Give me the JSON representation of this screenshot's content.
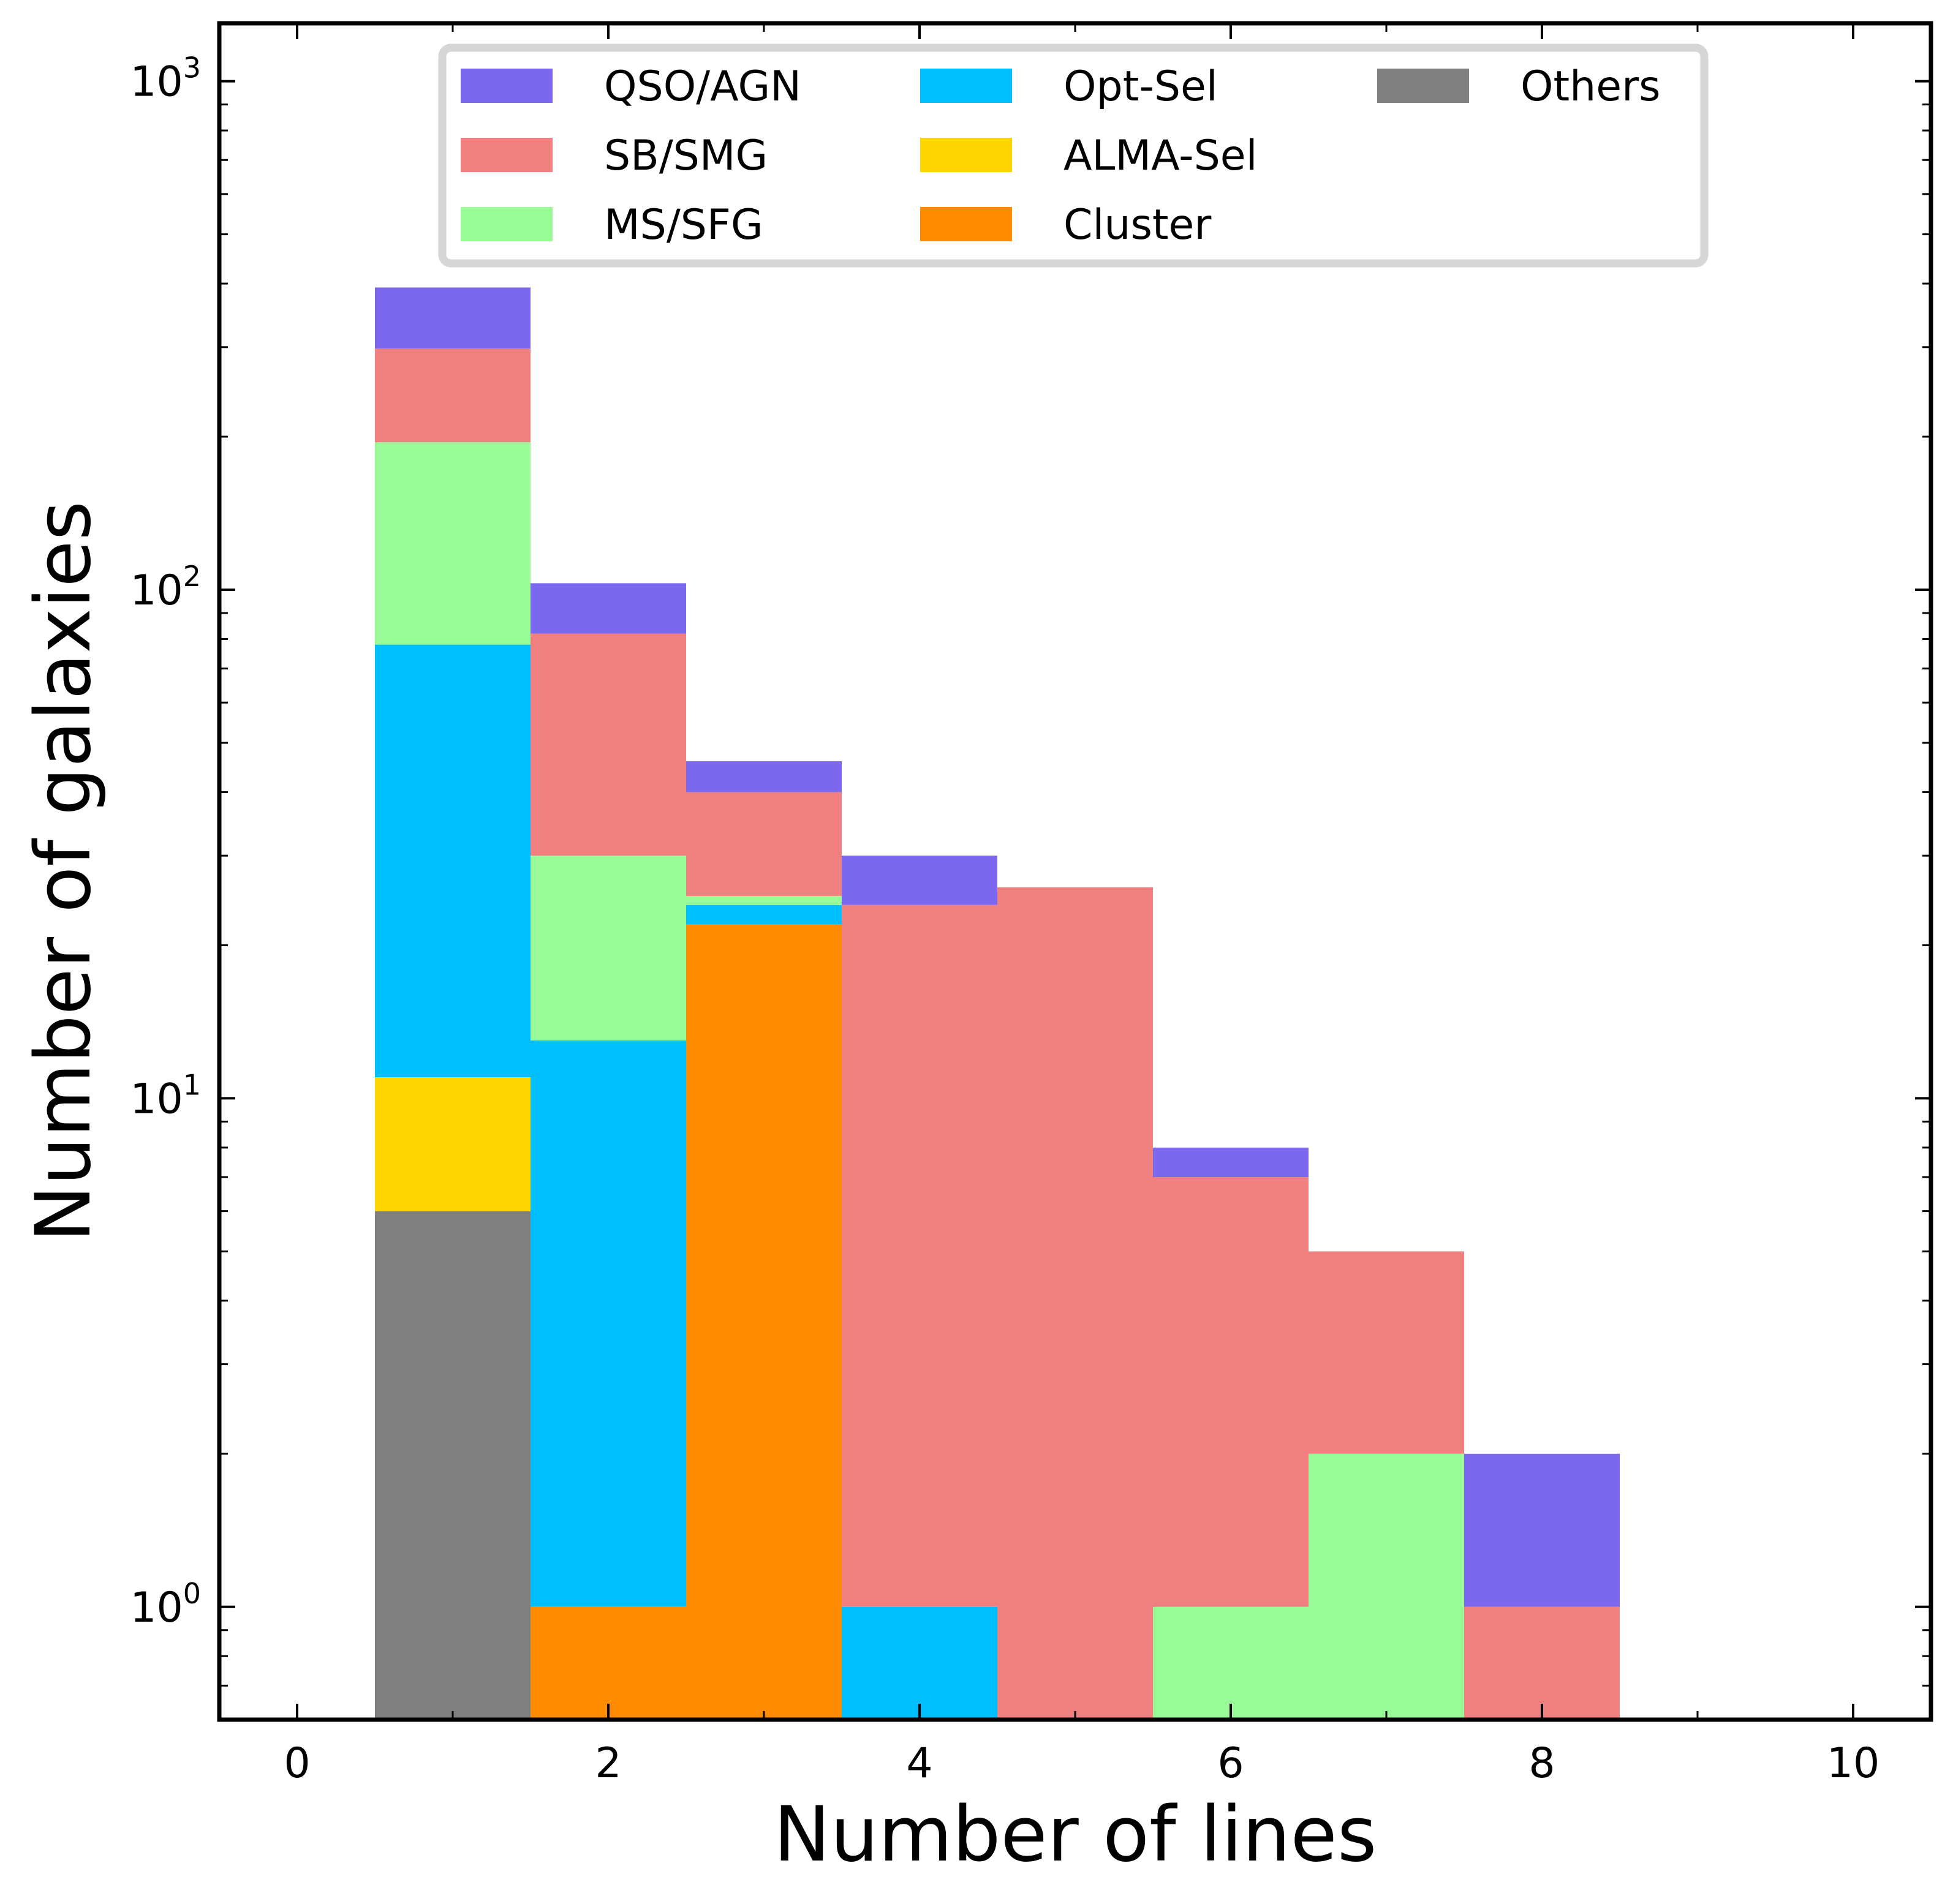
{
  "chart_data": {
    "type": "bar",
    "stacked": true,
    "xlabel": "Number of lines",
    "ylabel": "Number of galaxies",
    "yscale": "log",
    "xlim": [
      -0.5,
      10.5
    ],
    "ylim": [
      0.6,
      1300
    ],
    "xticks": [
      0,
      2,
      4,
      6,
      8,
      10
    ],
    "yticks": [
      {
        "base": "10",
        "exp": "0",
        "value": 1
      },
      {
        "base": "10",
        "exp": "1",
        "value": 10
      },
      {
        "base": "10",
        "exp": "2",
        "value": 100
      },
      {
        "base": "10",
        "exp": "3",
        "value": 1000
      }
    ],
    "bin_edges": [
      0.5,
      1.5,
      2.5,
      3.5,
      4.5,
      5.5,
      6.5,
      7.5,
      8.5
    ],
    "categories": [
      "1",
      "2",
      "3",
      "4",
      "5",
      "6",
      "7",
      "8"
    ],
    "series": [
      {
        "name": "Others",
        "color": "#808080",
        "values": [
          6,
          0,
          0,
          0,
          0,
          0,
          0,
          0
        ]
      },
      {
        "name": "ALMA-Sel",
        "color": "#ffd700",
        "values": [
          5,
          0,
          0,
          0,
          0,
          0,
          0,
          0
        ]
      },
      {
        "name": "Cluster",
        "color": "#ff8c00",
        "values": [
          0,
          1,
          22,
          0,
          0,
          0,
          0,
          0
        ]
      },
      {
        "name": "Opt-Sel",
        "color": "#00bfff",
        "values": [
          67,
          12,
          2,
          1,
          0,
          0,
          0,
          0
        ]
      },
      {
        "name": "MS/SFG",
        "color": "#98fb98",
        "values": [
          117,
          17,
          1,
          0,
          0,
          1,
          2,
          0
        ]
      },
      {
        "name": "SB/SMG",
        "color": "#f08080",
        "values": [
          103,
          52,
          15,
          23,
          26,
          6,
          3,
          1
        ]
      },
      {
        "name": "QSO/AGN",
        "color": "#7b68ee",
        "values": [
          95,
          21,
          6,
          6,
          0,
          1,
          0,
          1
        ]
      }
    ],
    "legend": {
      "location": "upper-center",
      "columns": 3,
      "order": [
        "QSO/AGN",
        "SB/SMG",
        "MS/SFG",
        "Opt-Sel",
        "ALMA-Sel",
        "Cluster",
        "Others"
      ]
    }
  }
}
